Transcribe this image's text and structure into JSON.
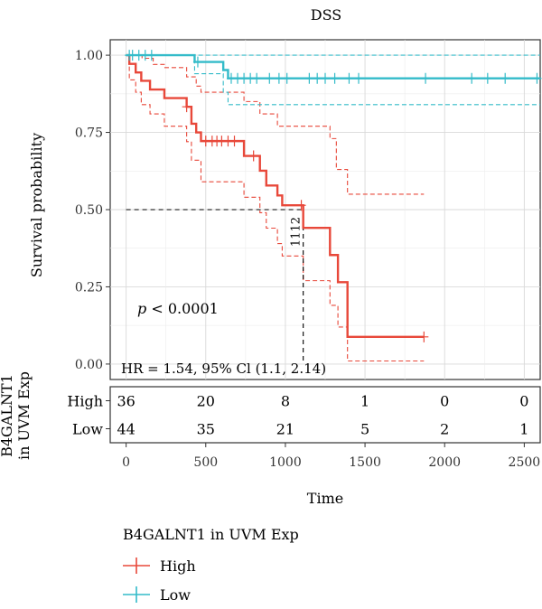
{
  "chart_data": {
    "type": "line",
    "subtype": "kaplan-meier",
    "title": "DSS",
    "xlabel": "Time",
    "ylabel": "Survival probability",
    "xlim": [
      -100,
      2600
    ],
    "ylim": [
      -0.05,
      1.05
    ],
    "xticks": [
      "0",
      "500",
      "1000",
      "1500",
      "2000",
      "2500"
    ],
    "yticks": [
      "0.00",
      "0.25",
      "0.50",
      "0.75",
      "1.00"
    ],
    "grid": true,
    "pvalue_label": "p",
    "pvalue_text": " < 0.0001",
    "hr_text": "HR = 1.54, 95% Cl (1.1, 2.14)",
    "median_label": "1112",
    "median": {
      "x": 1112,
      "y": 0.5
    },
    "legend": {
      "title": "B4GALNT1 in UVM Exp",
      "placement": "bottom-left",
      "entries": [
        "High",
        "Low"
      ]
    },
    "series": [
      {
        "name": "High",
        "color": "#E8483A",
        "steps": [
          [
            0,
            1.0
          ],
          [
            20,
            0.972
          ],
          [
            60,
            0.944
          ],
          [
            95,
            0.917
          ],
          [
            150,
            0.889
          ],
          [
            240,
            0.861
          ],
          [
            380,
            0.833
          ],
          [
            410,
            0.778
          ],
          [
            440,
            0.75
          ],
          [
            470,
            0.722
          ],
          [
            740,
            0.674
          ],
          [
            840,
            0.626
          ],
          [
            880,
            0.578
          ],
          [
            950,
            0.546
          ],
          [
            980,
            0.514
          ],
          [
            1112,
            0.441
          ],
          [
            1280,
            0.353
          ],
          [
            1330,
            0.265
          ],
          [
            1390,
            0.088
          ],
          [
            1870,
            0.088
          ]
        ],
        "censored": [
          [
            380,
            0.833
          ],
          [
            500,
            0.722
          ],
          [
            540,
            0.722
          ],
          [
            570,
            0.722
          ],
          [
            600,
            0.722
          ],
          [
            640,
            0.722
          ],
          [
            680,
            0.722
          ],
          [
            800,
            0.674
          ],
          [
            1100,
            0.514
          ],
          [
            1870,
            0.088
          ]
        ],
        "ci_upper": [
          [
            0,
            1.0
          ],
          [
            60,
            1.0
          ],
          [
            100,
            0.99
          ],
          [
            170,
            0.97
          ],
          [
            240,
            0.96
          ],
          [
            380,
            0.93
          ],
          [
            440,
            0.9
          ],
          [
            470,
            0.88
          ],
          [
            740,
            0.85
          ],
          [
            840,
            0.81
          ],
          [
            950,
            0.77
          ],
          [
            1280,
            0.73
          ],
          [
            1320,
            0.63
          ],
          [
            1390,
            0.55
          ],
          [
            1870,
            0.55
          ]
        ],
        "ci_lower": [
          [
            0,
            1.0
          ],
          [
            20,
            0.92
          ],
          [
            60,
            0.88
          ],
          [
            95,
            0.84
          ],
          [
            150,
            0.81
          ],
          [
            240,
            0.77
          ],
          [
            380,
            0.72
          ],
          [
            410,
            0.66
          ],
          [
            470,
            0.59
          ],
          [
            740,
            0.54
          ],
          [
            840,
            0.49
          ],
          [
            880,
            0.44
          ],
          [
            950,
            0.39
          ],
          [
            980,
            0.35
          ],
          [
            1112,
            0.27
          ],
          [
            1280,
            0.19
          ],
          [
            1330,
            0.12
          ],
          [
            1390,
            0.01
          ],
          [
            1870,
            0.01
          ]
        ]
      },
      {
        "name": "Low",
        "color": "#33BBC9",
        "steps": [
          [
            0,
            1.0
          ],
          [
            430,
            0.978
          ],
          [
            610,
            0.952
          ],
          [
            640,
            0.925
          ],
          [
            2600,
            0.925
          ]
        ],
        "censored": [
          [
            20,
            1.0
          ],
          [
            40,
            1.0
          ],
          [
            80,
            1.0
          ],
          [
            120,
            1.0
          ],
          [
            160,
            1.0
          ],
          [
            450,
            0.978
          ],
          [
            660,
            0.925
          ],
          [
            700,
            0.925
          ],
          [
            740,
            0.925
          ],
          [
            780,
            0.925
          ],
          [
            820,
            0.925
          ],
          [
            900,
            0.925
          ],
          [
            960,
            0.925
          ],
          [
            1010,
            0.925
          ],
          [
            1150,
            0.925
          ],
          [
            1200,
            0.925
          ],
          [
            1250,
            0.925
          ],
          [
            1310,
            0.925
          ],
          [
            1400,
            0.925
          ],
          [
            1460,
            0.925
          ],
          [
            1880,
            0.925
          ],
          [
            2170,
            0.925
          ],
          [
            2270,
            0.925
          ],
          [
            2380,
            0.925
          ],
          [
            2580,
            0.925
          ]
        ],
        "ci_upper": [
          [
            0,
            1.0
          ],
          [
            2600,
            1.0
          ]
        ],
        "ci_lower": [
          [
            0,
            1.0
          ],
          [
            430,
            0.94
          ],
          [
            610,
            0.88
          ],
          [
            640,
            0.84
          ],
          [
            2600,
            0.84
          ]
        ]
      }
    ],
    "risk_table": {
      "title": "B4GALNT1\nin UVM Exp",
      "times": [
        0,
        500,
        1000,
        1500,
        2000,
        2500
      ],
      "rows": [
        {
          "name": "High",
          "counts": [
            "36",
            "20",
            "8",
            "1",
            "0",
            "0"
          ]
        },
        {
          "name": "Low",
          "counts": [
            "44",
            "35",
            "21",
            "5",
            "2",
            "1"
          ]
        }
      ]
    }
  }
}
